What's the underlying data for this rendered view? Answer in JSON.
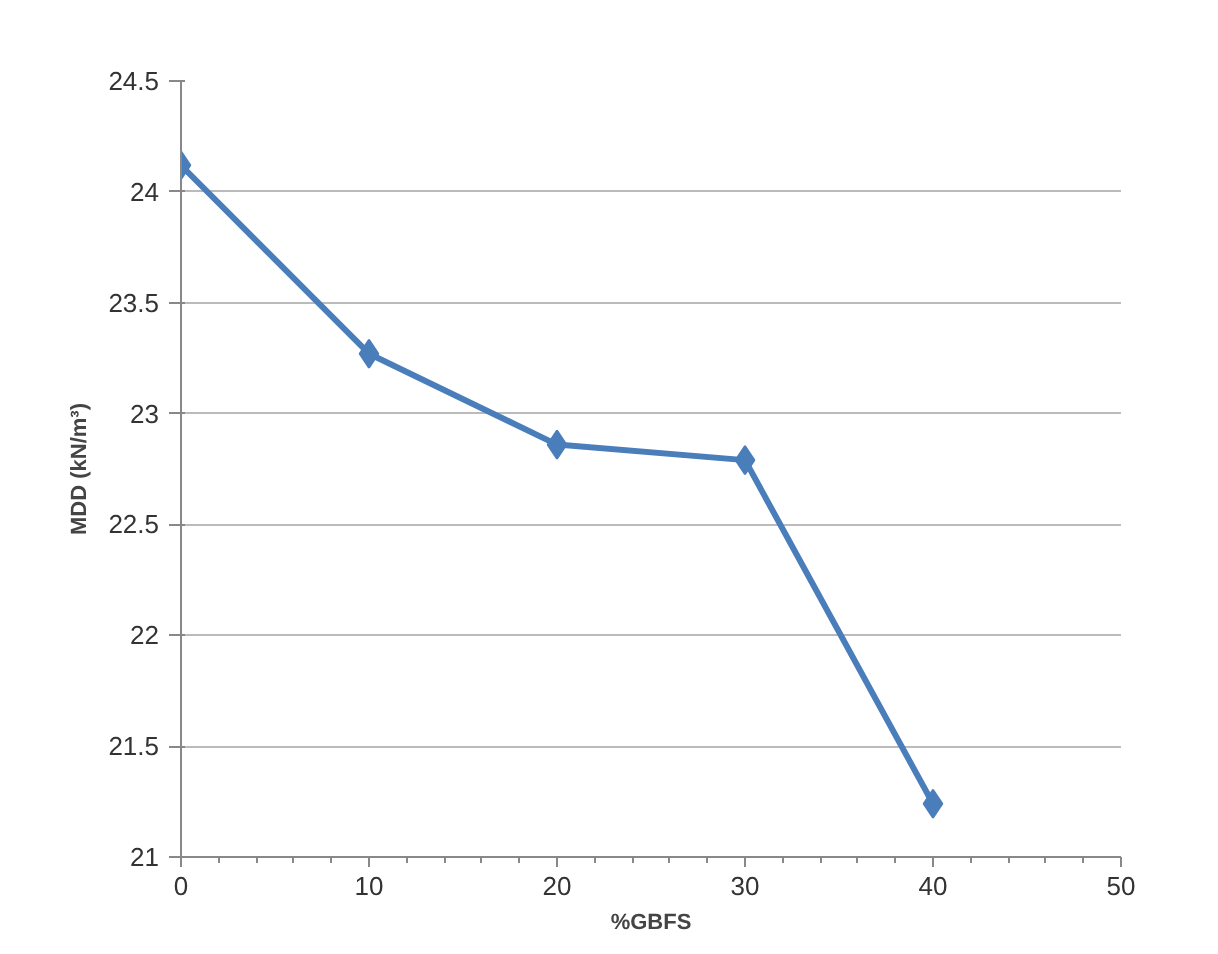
{
  "chart_data": {
    "type": "line",
    "xlabel": "%GBFS",
    "ylabel": "MDD (kN/m³)",
    "x": [
      0,
      10,
      20,
      30,
      40
    ],
    "series": [
      {
        "color": "#4a7ebb",
        "values": [
          24.12,
          23.27,
          22.86,
          22.79,
          21.24
        ]
      }
    ],
    "xlim": [
      0,
      50
    ],
    "xticks": [
      0,
      10,
      20,
      30,
      40,
      50
    ],
    "ylim": [
      21,
      24.5
    ],
    "yticks": [
      21,
      21.5,
      22,
      22.5,
      23,
      23.5,
      24,
      24.5
    ],
    "grid": "y",
    "marker": "diamond",
    "line_style": "solid"
  }
}
